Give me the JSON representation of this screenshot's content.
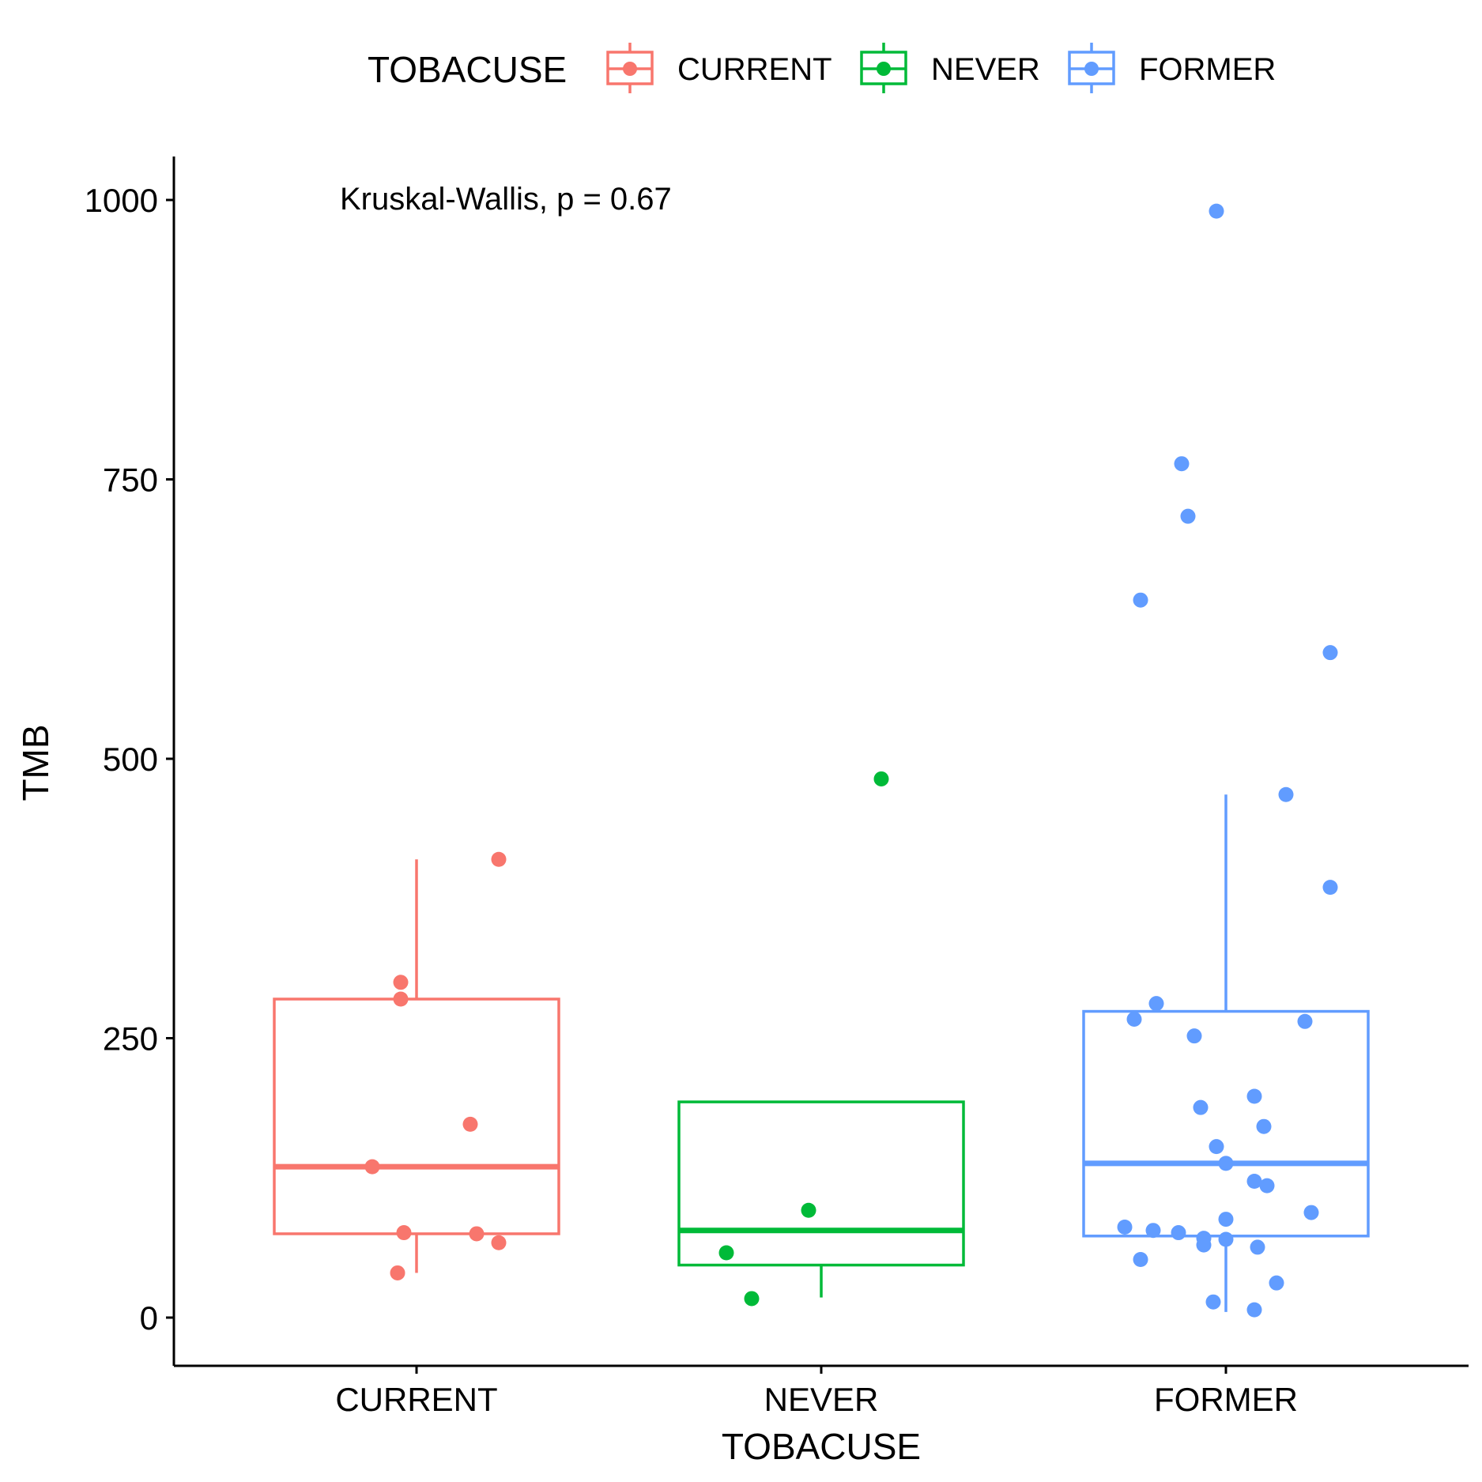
{
  "chart_data": {
    "type": "boxplot",
    "xlabel": "TOBACUSE",
    "ylabel": "TMB",
    "legend": {
      "title": "TOBACUSE",
      "position": "top",
      "entries": [
        "CURRENT",
        "NEVER",
        "FORMER"
      ]
    },
    "annotation": "Kruskal-Wallis, p = 0.67",
    "ylim": [
      -40,
      1040
    ],
    "yticks": [
      0,
      250,
      500,
      750,
      1000
    ],
    "grid": false,
    "categories": [
      "CURRENT",
      "NEVER",
      "FORMER"
    ],
    "colors": {
      "CURRENT": "#F8766D",
      "NEVER": "#00BA38",
      "FORMER": "#619CFF"
    },
    "boxes": [
      {
        "group": "CURRENT",
        "whisker_low": 40,
        "q1": 75,
        "median": 135,
        "q3": 285,
        "whisker_high": 410
      },
      {
        "group": "NEVER",
        "whisker_low": 18,
        "q1": 47,
        "median": 78,
        "q3": 193,
        "whisker_high": 193
      },
      {
        "group": "FORMER",
        "whisker_low": 5,
        "q1": 73,
        "median": 138,
        "q3": 274,
        "whisker_high": 468
      }
    ],
    "points": [
      {
        "group": "CURRENT",
        "values": [
          410,
          300,
          285,
          173,
          135,
          76,
          75,
          67,
          40
        ],
        "jitter": [
          0.26,
          -0.05,
          -0.05,
          0.17,
          -0.14,
          -0.04,
          0.19,
          0.26,
          -0.06
        ]
      },
      {
        "group": "NEVER",
        "values": [
          482,
          96,
          58,
          17
        ],
        "jitter": [
          0.19,
          -0.04,
          -0.3,
          -0.22
        ]
      },
      {
        "group": "FORMER",
        "values": [
          990,
          764,
          717,
          642,
          595,
          468,
          385,
          281,
          267,
          265,
          252,
          198,
          188,
          171,
          153,
          138,
          122,
          118,
          94,
          88,
          81,
          78,
          76,
          71,
          70,
          65,
          63,
          52,
          31,
          14,
          7
        ],
        "jitter": [
          -0.03,
          -0.14,
          -0.12,
          -0.27,
          0.33,
          0.19,
          0.33,
          -0.22,
          -0.29,
          0.25,
          -0.1,
          0.09,
          -0.08,
          0.12,
          -0.03,
          0.0,
          0.09,
          0.13,
          0.27,
          0.0,
          -0.32,
          -0.23,
          -0.15,
          -0.07,
          0.0,
          -0.07,
          0.1,
          -0.27,
          0.16,
          -0.04,
          0.09
        ]
      }
    ]
  }
}
